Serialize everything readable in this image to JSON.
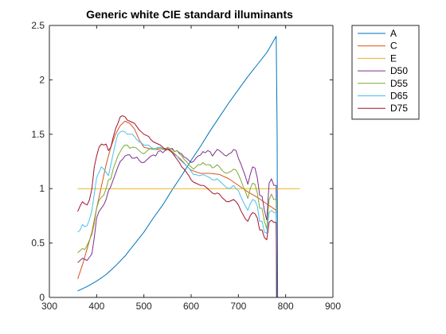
{
  "chart_data": {
    "type": "line",
    "title": "Generic white CIE standard illuminants",
    "xlabel": "",
    "ylabel": "",
    "xlim": [
      300,
      900
    ],
    "ylim": [
      0,
      2.5
    ],
    "xticks": [
      300,
      400,
      500,
      600,
      700,
      800,
      900
    ],
    "yticks": [
      0,
      0.5,
      1,
      1.5,
      2,
      2.5
    ],
    "xtick_labels": [
      "300",
      "400",
      "500",
      "600",
      "700",
      "800",
      "900"
    ],
    "ytick_labels": [
      "0",
      "0.5",
      "1",
      "1.5",
      "2",
      "2.5"
    ],
    "grid": false,
    "legend_position": "outside-top-right",
    "series": [
      {
        "name": "A",
        "color": "#0072bd",
        "x": [
          360,
          380,
          400,
          420,
          440,
          460,
          480,
          500,
          520,
          540,
          560,
          580,
          600,
          620,
          640,
          660,
          680,
          700,
          720,
          740,
          760,
          780,
          782,
          783
        ],
        "y": [
          0.06,
          0.1,
          0.15,
          0.21,
          0.29,
          0.38,
          0.49,
          0.6,
          0.73,
          0.85,
          0.99,
          1.12,
          1.26,
          1.39,
          1.53,
          1.66,
          1.79,
          1.91,
          2.03,
          2.14,
          2.25,
          2.4,
          1.5,
          0.0
        ]
      },
      {
        "name": "C",
        "color": "#d95319",
        "x": [
          360,
          370,
          380,
          390,
          400,
          410,
          420,
          430,
          440,
          450,
          460,
          470,
          480,
          490,
          500,
          510,
          520,
          530,
          540,
          550,
          560,
          570,
          580,
          590,
          600,
          620,
          640,
          660,
          680,
          700,
          720,
          740,
          760,
          770,
          780,
          781
        ],
        "y": [
          0.17,
          0.3,
          0.45,
          0.6,
          0.82,
          1.02,
          1.22,
          1.38,
          1.5,
          1.58,
          1.62,
          1.6,
          1.55,
          1.45,
          1.38,
          1.37,
          1.36,
          1.36,
          1.37,
          1.37,
          1.34,
          1.3,
          1.26,
          1.21,
          1.17,
          1.14,
          1.14,
          1.13,
          1.09,
          1.03,
          0.97,
          0.92,
          0.86,
          0.83,
          0.8,
          0.0
        ]
      },
      {
        "name": "E",
        "color": "#edb120",
        "x": [
          360,
          830
        ],
        "y": [
          1.0,
          1.0
        ]
      },
      {
        "name": "D50",
        "color": "#7e2f8e",
        "x": [
          360,
          365,
          370,
          375,
          380,
          385,
          390,
          395,
          400,
          405,
          410,
          415,
          420,
          425,
          430,
          435,
          440,
          445,
          450,
          455,
          460,
          465,
          470,
          475,
          480,
          485,
          490,
          495,
          500,
          505,
          510,
          515,
          520,
          525,
          530,
          535,
          540,
          545,
          550,
          555,
          560,
          565,
          570,
          575,
          580,
          585,
          590,
          595,
          600,
          605,
          610,
          615,
          620,
          625,
          630,
          635,
          640,
          645,
          650,
          655,
          660,
          665,
          670,
          675,
          680,
          685,
          690,
          695,
          700,
          705,
          710,
          715,
          720,
          725,
          730,
          735,
          740,
          745,
          750,
          755,
          760,
          765,
          770,
          775,
          780,
          781
        ],
        "y": [
          0.32,
          0.34,
          0.36,
          0.35,
          0.34,
          0.37,
          0.4,
          0.55,
          0.73,
          0.79,
          0.82,
          0.85,
          0.9,
          0.98,
          1.02,
          1.08,
          1.14,
          1.2,
          1.25,
          1.27,
          1.3,
          1.31,
          1.31,
          1.28,
          1.28,
          1.29,
          1.26,
          1.24,
          1.24,
          1.26,
          1.28,
          1.3,
          1.31,
          1.3,
          1.34,
          1.35,
          1.33,
          1.35,
          1.36,
          1.36,
          1.37,
          1.34,
          1.35,
          1.33,
          1.32,
          1.29,
          1.28,
          1.26,
          1.24,
          1.25,
          1.28,
          1.3,
          1.31,
          1.34,
          1.33,
          1.35,
          1.34,
          1.3,
          1.33,
          1.36,
          1.35,
          1.33,
          1.31,
          1.3,
          1.32,
          1.33,
          1.36,
          1.35,
          1.28,
          1.23,
          1.17,
          1.11,
          1.04,
          1.13,
          1.2,
          1.19,
          1.1,
          0.94,
          0.93,
          0.8,
          0.71,
          1.05,
          1.09,
          1.03,
          1.03,
          0.0
        ]
      },
      {
        "name": "D55",
        "color": "#77ac30",
        "x": [
          360,
          365,
          370,
          375,
          380,
          385,
          390,
          395,
          400,
          405,
          410,
          415,
          420,
          425,
          430,
          435,
          440,
          445,
          450,
          455,
          460,
          465,
          470,
          475,
          480,
          485,
          490,
          495,
          500,
          505,
          510,
          515,
          520,
          525,
          530,
          535,
          540,
          545,
          550,
          555,
          560,
          565,
          570,
          575,
          580,
          585,
          590,
          595,
          600,
          605,
          610,
          615,
          620,
          625,
          630,
          635,
          640,
          645,
          650,
          655,
          660,
          665,
          670,
          675,
          680,
          685,
          690,
          695,
          700,
          705,
          710,
          715,
          720,
          725,
          730,
          735,
          740,
          745,
          750,
          755,
          760,
          765,
          770,
          775,
          780,
          781
        ],
        "y": [
          0.41,
          0.43,
          0.45,
          0.44,
          0.48,
          0.53,
          0.58,
          0.68,
          0.82,
          0.89,
          0.92,
          0.94,
          1.0,
          1.08,
          1.09,
          1.18,
          1.24,
          1.3,
          1.34,
          1.38,
          1.4,
          1.4,
          1.37,
          1.38,
          1.38,
          1.37,
          1.35,
          1.33,
          1.32,
          1.34,
          1.36,
          1.37,
          1.36,
          1.36,
          1.37,
          1.38,
          1.36,
          1.36,
          1.38,
          1.37,
          1.36,
          1.34,
          1.35,
          1.32,
          1.3,
          1.27,
          1.25,
          1.22,
          1.2,
          1.18,
          1.2,
          1.22,
          1.22,
          1.24,
          1.22,
          1.22,
          1.22,
          1.19,
          1.2,
          1.22,
          1.2,
          1.17,
          1.15,
          1.14,
          1.15,
          1.16,
          1.18,
          1.17,
          1.13,
          1.08,
          1.02,
          0.97,
          0.91,
          1.0,
          1.05,
          1.04,
          0.96,
          0.82,
          0.82,
          0.7,
          0.63,
          0.9,
          0.95,
          0.9,
          0.9,
          0.0
        ]
      },
      {
        "name": "D65",
        "color": "#4dbeee",
        "x": [
          360,
          365,
          370,
          375,
          380,
          385,
          390,
          395,
          400,
          405,
          410,
          415,
          420,
          425,
          430,
          435,
          440,
          445,
          450,
          455,
          460,
          465,
          470,
          475,
          480,
          485,
          490,
          495,
          500,
          505,
          510,
          515,
          520,
          525,
          530,
          535,
          540,
          545,
          550,
          555,
          560,
          565,
          570,
          575,
          580,
          585,
          590,
          595,
          600,
          605,
          610,
          615,
          620,
          625,
          630,
          635,
          640,
          645,
          650,
          655,
          660,
          665,
          670,
          675,
          680,
          685,
          690,
          695,
          700,
          705,
          710,
          715,
          720,
          725,
          730,
          735,
          740,
          745,
          750,
          755,
          760,
          765,
          770,
          775,
          780,
          781
        ],
        "y": [
          0.6,
          0.62,
          0.67,
          0.65,
          0.66,
          0.72,
          0.8,
          0.95,
          1.1,
          1.15,
          1.2,
          1.18,
          1.15,
          1.12,
          1.22,
          1.32,
          1.42,
          1.5,
          1.52,
          1.53,
          1.52,
          1.5,
          1.5,
          1.5,
          1.48,
          1.45,
          1.43,
          1.42,
          1.4,
          1.4,
          1.4,
          1.38,
          1.37,
          1.37,
          1.38,
          1.38,
          1.37,
          1.36,
          1.36,
          1.35,
          1.33,
          1.31,
          1.3,
          1.27,
          1.25,
          1.23,
          1.21,
          1.19,
          1.16,
          1.13,
          1.13,
          1.12,
          1.12,
          1.13,
          1.12,
          1.11,
          1.1,
          1.08,
          1.08,
          1.09,
          1.07,
          1.05,
          1.03,
          1.01,
          1.0,
          1.01,
          1.03,
          1.0,
          0.98,
          0.93,
          0.88,
          0.84,
          0.8,
          0.86,
          0.9,
          0.89,
          0.84,
          0.7,
          0.7,
          0.6,
          0.59,
          0.78,
          0.8,
          0.78,
          0.78,
          0.0
        ]
      },
      {
        "name": "D75",
        "color": "#a2142f",
        "x": [
          360,
          365,
          370,
          375,
          380,
          385,
          390,
          395,
          400,
          405,
          410,
          415,
          420,
          425,
          430,
          435,
          440,
          445,
          450,
          455,
          460,
          465,
          470,
          475,
          480,
          485,
          490,
          495,
          500,
          505,
          510,
          515,
          520,
          525,
          530,
          535,
          540,
          545,
          550,
          555,
          560,
          565,
          570,
          575,
          580,
          585,
          590,
          595,
          600,
          605,
          610,
          615,
          620,
          625,
          630,
          635,
          640,
          645,
          650,
          655,
          660,
          665,
          670,
          675,
          680,
          685,
          690,
          695,
          700,
          705,
          710,
          715,
          720,
          725,
          730,
          735,
          740,
          745,
          750,
          755,
          760,
          765,
          770,
          775,
          780,
          781
        ],
        "y": [
          0.79,
          0.84,
          0.88,
          0.86,
          0.85,
          0.9,
          1.0,
          1.2,
          1.3,
          1.38,
          1.41,
          1.4,
          1.41,
          1.35,
          1.38,
          1.47,
          1.55,
          1.6,
          1.66,
          1.67,
          1.66,
          1.63,
          1.62,
          1.61,
          1.6,
          1.57,
          1.54,
          1.52,
          1.5,
          1.49,
          1.48,
          1.45,
          1.43,
          1.42,
          1.41,
          1.4,
          1.38,
          1.36,
          1.36,
          1.35,
          1.33,
          1.3,
          1.27,
          1.24,
          1.2,
          1.18,
          1.15,
          1.12,
          1.08,
          1.06,
          1.05,
          1.04,
          1.03,
          1.03,
          1.02,
          1.0,
          0.98,
          0.96,
          0.95,
          0.96,
          0.95,
          0.92,
          0.9,
          0.88,
          0.88,
          0.89,
          0.9,
          0.88,
          0.85,
          0.8,
          0.76,
          0.72,
          0.7,
          0.75,
          0.78,
          0.77,
          0.73,
          0.62,
          0.62,
          0.55,
          0.53,
          0.69,
          0.71,
          0.69,
          0.69,
          0.0
        ]
      }
    ]
  }
}
